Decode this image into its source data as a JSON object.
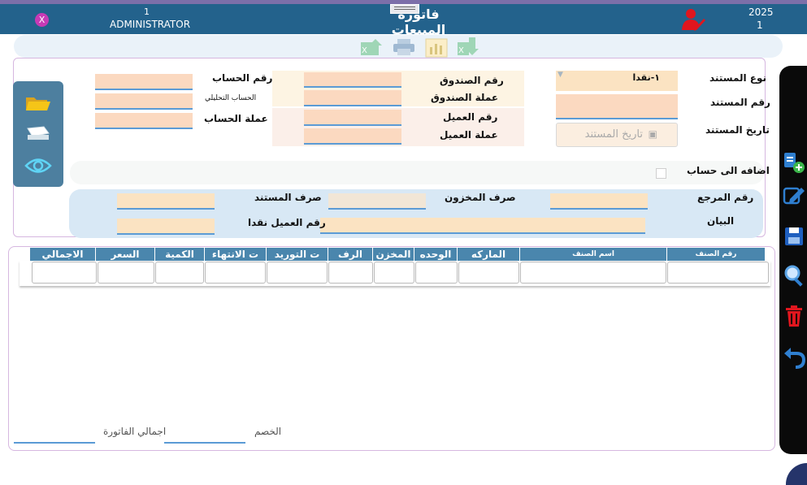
{
  "header": {
    "year": "2025",
    "period": "1",
    "title": "فاتوره المبيعات",
    "user_id": "1",
    "user_name": "ADMINISTRATOR",
    "close_label": "X"
  },
  "doc": {
    "doc_type_label": "نوع المستند",
    "doc_type_value": "١-نقدا",
    "doc_no_label": "رقم المستند",
    "doc_date_label": "تاريخ المستند",
    "doc_date_placeholder": "تاريخ المستند"
  },
  "cashbox": {
    "box_no_label": "رقم الصندوق",
    "box_currency_label": "عملة الصندوق",
    "customer_no_label": "رقم العميل",
    "customer_currency_label": "عملة العميل"
  },
  "account": {
    "account_no_label": "رقم الحساب",
    "analytic_label": "الحساب التحليلي",
    "account_currency_label": "عملة  الحساب"
  },
  "add_to_account_label": "اضافه الى حساب",
  "refs": {
    "reference_label": "رقم  المرجع",
    "store_issue_label": "صرف المخزون",
    "doc_issue_label": "صرف  المستند",
    "statement_label": "البيان",
    "cash_customer_label": "رقم العميل نقدا"
  },
  "grid": {
    "columns": [
      "رقم الصنف",
      "اسم الصنف",
      "الماركه",
      "الوحده",
      "المخزن",
      "الرف",
      "ت التوريد",
      "ت الانتهاء",
      "الكمية",
      "السعر",
      "الاجمالي"
    ]
  },
  "totals": {
    "discount_label": "الخصم",
    "invoice_total_label": "اجمالي الفاتورة"
  },
  "colors": {
    "header_bg": "#23628c",
    "field_bg": "#fbd9c0",
    "grid_header": "#4a86ad",
    "side_panel": "#000000"
  }
}
